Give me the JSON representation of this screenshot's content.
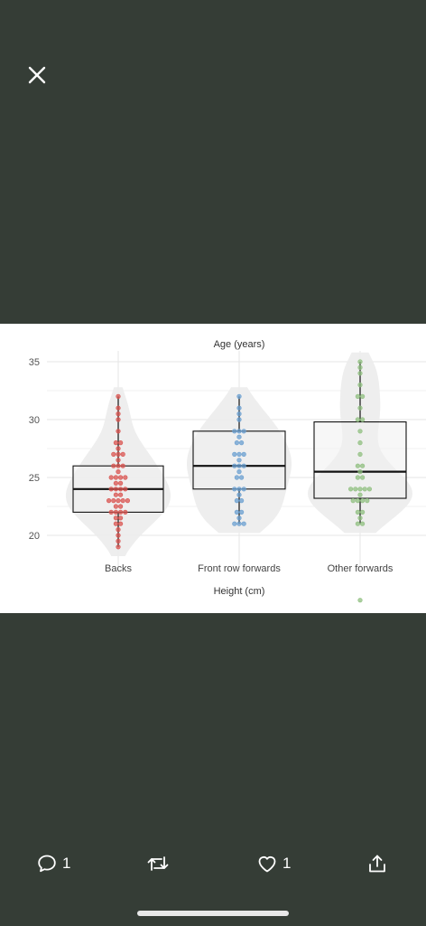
{
  "viewer": {
    "close_icon": "close-icon",
    "background": "#353d36"
  },
  "chart_data": {
    "type": "box-swarm",
    "title": "Age (years)",
    "xlabel": "Height (cm)",
    "ylabel": "",
    "yticks": [
      20,
      25,
      30,
      35
    ],
    "ylim": [
      18.5,
      36.5
    ],
    "grid": true,
    "categories": [
      "Backs",
      "Front row forwards",
      "Other forwards"
    ],
    "series": [
      {
        "color": "#d9534f",
        "box": {
          "q1": 22,
          "median": 24,
          "q3": 26,
          "whisker_low": 19,
          "whisker_high": 32
        },
        "points": [
          19,
          19.5,
          20,
          20.5,
          21,
          21,
          21.5,
          21.5,
          22,
          22,
          22,
          22,
          22.5,
          22.5,
          23,
          23,
          23,
          23,
          23,
          23.5,
          23.5,
          24,
          24,
          24,
          24,
          24.5,
          24.5,
          25,
          25,
          25,
          25,
          25.5,
          26,
          26,
          26,
          26.5,
          27,
          27,
          27,
          27.5,
          28,
          28,
          29,
          30,
          30.5,
          31,
          32
        ]
      },
      {
        "color": "#6a9fd0",
        "box": {
          "q1": 24,
          "median": 26,
          "q3": 29,
          "whisker_low": 21,
          "whisker_high": 32
        },
        "points": [
          21,
          21,
          21,
          21.5,
          22,
          22,
          23,
          23,
          23.5,
          24,
          24,
          24,
          25,
          25,
          25.5,
          26,
          26,
          26,
          26.5,
          27,
          27,
          27,
          28,
          28,
          28.5,
          29,
          29,
          29,
          30,
          30.5,
          31,
          32
        ]
      },
      {
        "color": "#8fbf7f",
        "box": {
          "q1": 23.2,
          "median": 25.5,
          "q3": 29.8,
          "whisker_low": 21,
          "whisker_high": 35
        },
        "points": [
          14.4,
          21,
          21,
          21.5,
          22,
          22,
          23,
          23,
          23,
          23,
          23.5,
          24,
          24,
          24,
          24,
          24,
          25,
          25,
          25.5,
          26,
          26,
          27,
          28,
          29,
          30,
          30,
          31,
          32,
          32,
          33,
          34,
          34.5,
          35
        ]
      }
    ]
  },
  "actions": {
    "reply_icon": "speech-bubble-icon",
    "reply_count": "1",
    "repost_icon": "repost-icon",
    "like_icon": "heart-icon",
    "like_count": "1",
    "share_icon": "share-icon"
  }
}
